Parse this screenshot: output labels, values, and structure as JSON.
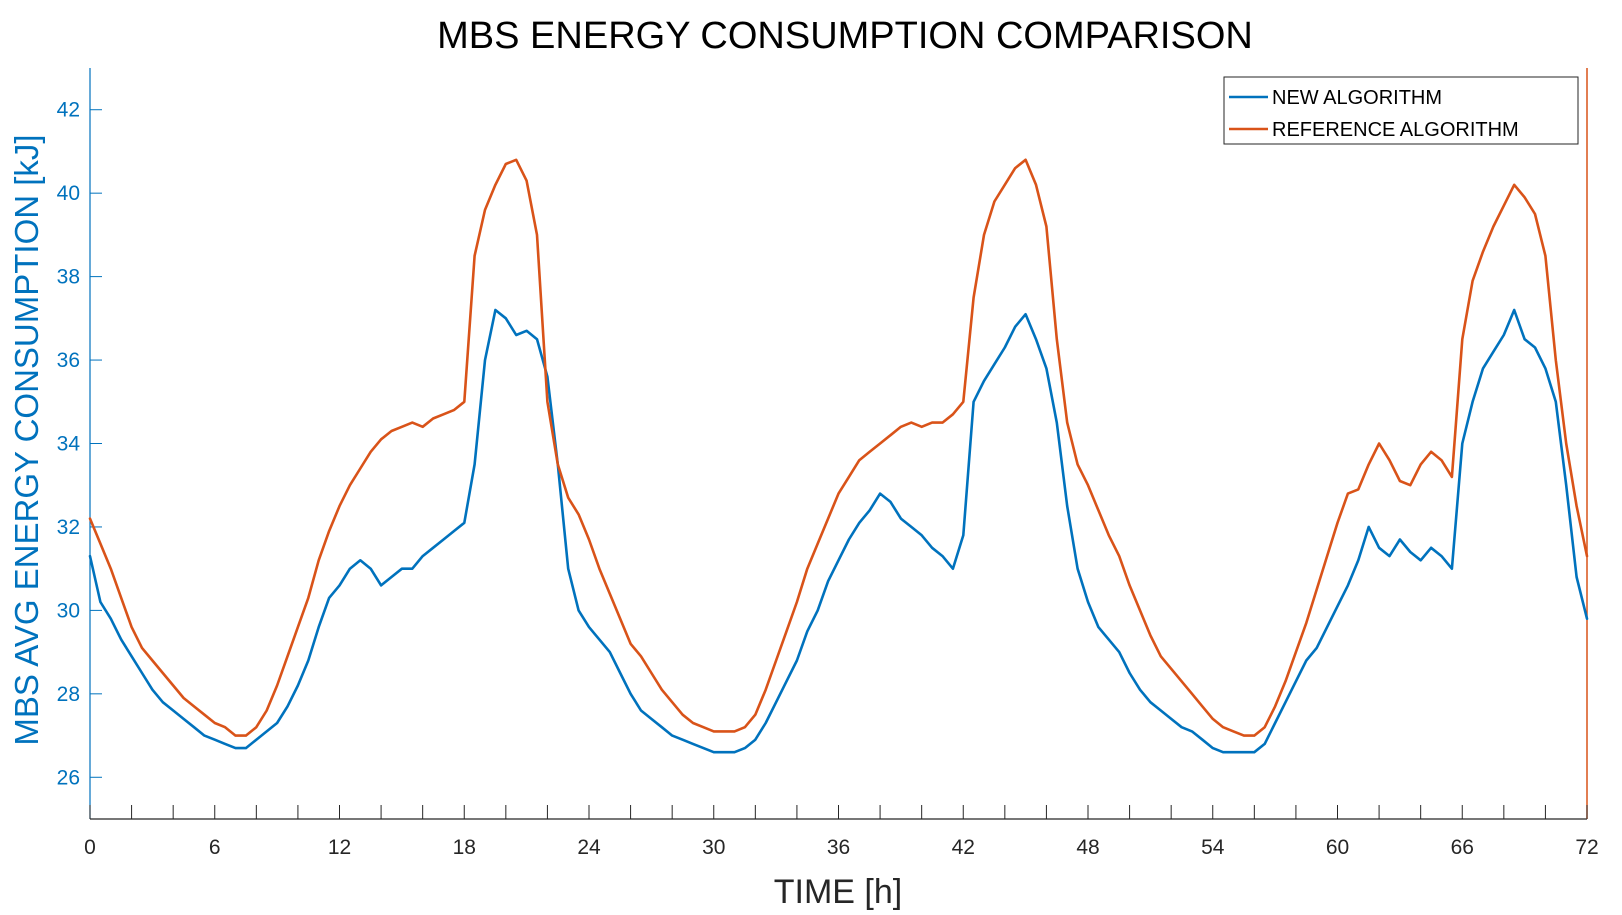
{
  "chart_data": {
    "type": "line",
    "title": "MBS ENERGY CONSUMPTION COMPARISON",
    "xlabel": "TIME [h]",
    "ylabel": "MBS AVG ENERGY CONSUMPTION [kJ]",
    "xlim": [
      0,
      72
    ],
    "ylim": [
      25,
      43
    ],
    "xticks": [
      0,
      6,
      12,
      18,
      24,
      30,
      36,
      42,
      48,
      54,
      60,
      66,
      72
    ],
    "yticks": [
      26,
      28,
      30,
      32,
      34,
      36,
      38,
      40,
      42
    ],
    "grid": false,
    "legend_position": "top-right",
    "colors": {
      "axis": "#0072BD",
      "x_axis": "#262626",
      "new": "#0072BD",
      "reference": "#D95319"
    },
    "series": [
      {
        "name": "NEW ALGORITHM",
        "color": "#0072BD",
        "x": [
          0,
          0.5,
          1,
          1.5,
          2,
          2.5,
          3,
          3.5,
          4,
          4.5,
          5,
          5.5,
          6,
          6.5,
          7,
          7.5,
          8,
          8.5,
          9,
          9.5,
          10,
          10.5,
          11,
          11.5,
          12,
          12.5,
          13,
          13.5,
          14,
          14.5,
          15,
          15.5,
          16,
          16.5,
          17,
          17.5,
          18,
          18.5,
          19,
          19.5,
          20,
          20.5,
          21,
          21.5,
          22,
          22.5,
          23,
          23.5,
          24,
          24.5,
          25,
          25.5,
          26,
          26.5,
          27,
          27.5,
          28,
          28.5,
          29,
          29.5,
          30,
          30.5,
          31,
          31.5,
          32,
          32.5,
          33,
          33.5,
          34,
          34.5,
          35,
          35.5,
          36,
          36.5,
          37,
          37.5,
          38,
          38.5,
          39,
          39.5,
          40,
          40.5,
          41,
          41.5,
          42,
          42.5,
          43,
          43.5,
          44,
          44.5,
          45,
          45.5,
          46,
          46.5,
          47,
          47.5,
          48,
          48.5,
          49,
          49.5,
          50,
          50.5,
          51,
          51.5,
          52,
          52.5,
          53,
          53.5,
          54,
          54.5,
          55,
          55.5,
          56,
          56.5,
          57,
          57.5,
          58,
          58.5,
          59,
          59.5,
          60,
          60.5,
          61,
          61.5,
          62,
          62.5,
          63,
          63.5,
          64,
          64.5,
          65,
          65.5,
          66,
          66.5,
          67,
          67.5,
          68,
          68.5,
          69,
          69.5,
          70,
          70.5,
          71,
          71.5,
          72
        ],
        "y": [
          31.3,
          30.2,
          29.8,
          29.3,
          28.9,
          28.5,
          28.1,
          27.8,
          27.6,
          27.4,
          27.2,
          27.0,
          26.9,
          26.8,
          26.7,
          26.7,
          26.9,
          27.1,
          27.3,
          27.7,
          28.2,
          28.8,
          29.6,
          30.3,
          30.6,
          31.0,
          31.2,
          31.0,
          30.6,
          30.8,
          31.0,
          31.0,
          31.3,
          31.5,
          31.7,
          31.9,
          32.1,
          33.5,
          36.0,
          37.2,
          37.0,
          36.6,
          36.7,
          36.5,
          35.6,
          33.5,
          31.0,
          30.0,
          29.6,
          29.3,
          29.0,
          28.5,
          28.0,
          27.6,
          27.4,
          27.2,
          27.0,
          26.9,
          26.8,
          26.7,
          26.6,
          26.6,
          26.6,
          26.7,
          26.9,
          27.3,
          27.8,
          28.3,
          28.8,
          29.5,
          30.0,
          30.7,
          31.2,
          31.7,
          32.1,
          32.4,
          32.8,
          32.6,
          32.2,
          32.0,
          31.8,
          31.5,
          31.3,
          31.0,
          31.8,
          35.0,
          35.5,
          35.9,
          36.3,
          36.8,
          37.1,
          36.5,
          35.8,
          34.5,
          32.5,
          31.0,
          30.2,
          29.6,
          29.3,
          29.0,
          28.5,
          28.1,
          27.8,
          27.6,
          27.4,
          27.2,
          27.1,
          26.9,
          26.7,
          26.6,
          26.6,
          26.6,
          26.6,
          26.8,
          27.3,
          27.8,
          28.3,
          28.8,
          29.1,
          29.6,
          30.1,
          30.6,
          31.2,
          32.0,
          31.5,
          31.3,
          31.7,
          31.4,
          31.2,
          31.5,
          31.3,
          31.0,
          34.0,
          35.0,
          35.8,
          36.2,
          36.6,
          37.2,
          36.5,
          36.3,
          35.8,
          35.0,
          33.0,
          30.8,
          29.8
        ]
      },
      {
        "name": "REFERENCE ALGORITHM",
        "color": "#D95319",
        "x": [
          0,
          0.5,
          1,
          1.5,
          2,
          2.5,
          3,
          3.5,
          4,
          4.5,
          5,
          5.5,
          6,
          6.5,
          7,
          7.5,
          8,
          8.5,
          9,
          9.5,
          10,
          10.5,
          11,
          11.5,
          12,
          12.5,
          13,
          13.5,
          14,
          14.5,
          15,
          15.5,
          16,
          16.5,
          17,
          17.5,
          18,
          18.5,
          19,
          19.5,
          20,
          20.5,
          21,
          21.5,
          22,
          22.5,
          23,
          23.5,
          24,
          24.5,
          25,
          25.5,
          26,
          26.5,
          27,
          27.5,
          28,
          28.5,
          29,
          29.5,
          30,
          30.5,
          31,
          31.5,
          32,
          32.5,
          33,
          33.5,
          34,
          34.5,
          35,
          35.5,
          36,
          36.5,
          37,
          37.5,
          38,
          38.5,
          39,
          39.5,
          40,
          40.5,
          41,
          41.5,
          42,
          42.5,
          43,
          43.5,
          44,
          44.5,
          45,
          45.5,
          46,
          46.5,
          47,
          47.5,
          48,
          48.5,
          49,
          49.5,
          50,
          50.5,
          51,
          51.5,
          52,
          52.5,
          53,
          53.5,
          54,
          54.5,
          55,
          55.5,
          56,
          56.5,
          57,
          57.5,
          58,
          58.5,
          59,
          59.5,
          60,
          60.5,
          61,
          61.5,
          62,
          62.5,
          63,
          63.5,
          64,
          64.5,
          65,
          65.5,
          66,
          66.5,
          67,
          67.5,
          68,
          68.5,
          69,
          69.5,
          70,
          70.5,
          71,
          71.5,
          72
        ],
        "y": [
          32.2,
          31.6,
          31.0,
          30.3,
          29.6,
          29.1,
          28.8,
          28.5,
          28.2,
          27.9,
          27.7,
          27.5,
          27.3,
          27.2,
          27.0,
          27.0,
          27.2,
          27.6,
          28.2,
          28.9,
          29.6,
          30.3,
          31.2,
          31.9,
          32.5,
          33.0,
          33.4,
          33.8,
          34.1,
          34.3,
          34.4,
          34.5,
          34.4,
          34.6,
          34.7,
          34.8,
          35.0,
          38.5,
          39.6,
          40.2,
          40.7,
          40.8,
          40.3,
          39.0,
          35.0,
          33.5,
          32.7,
          32.3,
          31.7,
          31.0,
          30.4,
          29.8,
          29.2,
          28.9,
          28.5,
          28.1,
          27.8,
          27.5,
          27.3,
          27.2,
          27.1,
          27.1,
          27.1,
          27.2,
          27.5,
          28.1,
          28.8,
          29.5,
          30.2,
          31.0,
          31.6,
          32.2,
          32.8,
          33.2,
          33.6,
          33.8,
          34.0,
          34.2,
          34.4,
          34.5,
          34.4,
          34.5,
          34.5,
          34.7,
          35.0,
          37.5,
          39.0,
          39.8,
          40.2,
          40.6,
          40.8,
          40.2,
          39.2,
          36.5,
          34.5,
          33.5,
          33.0,
          32.4,
          31.8,
          31.3,
          30.6,
          30.0,
          29.4,
          28.9,
          28.6,
          28.3,
          28.0,
          27.7,
          27.4,
          27.2,
          27.1,
          27.0,
          27.0,
          27.2,
          27.7,
          28.3,
          29.0,
          29.7,
          30.5,
          31.3,
          32.1,
          32.8,
          32.9,
          33.5,
          34.0,
          33.6,
          33.1,
          33.0,
          33.5,
          33.8,
          33.6,
          33.2,
          36.5,
          37.9,
          38.6,
          39.2,
          39.7,
          40.2,
          39.9,
          39.5,
          38.5,
          36.0,
          34.0,
          32.5,
          31.3
        ]
      }
    ]
  }
}
